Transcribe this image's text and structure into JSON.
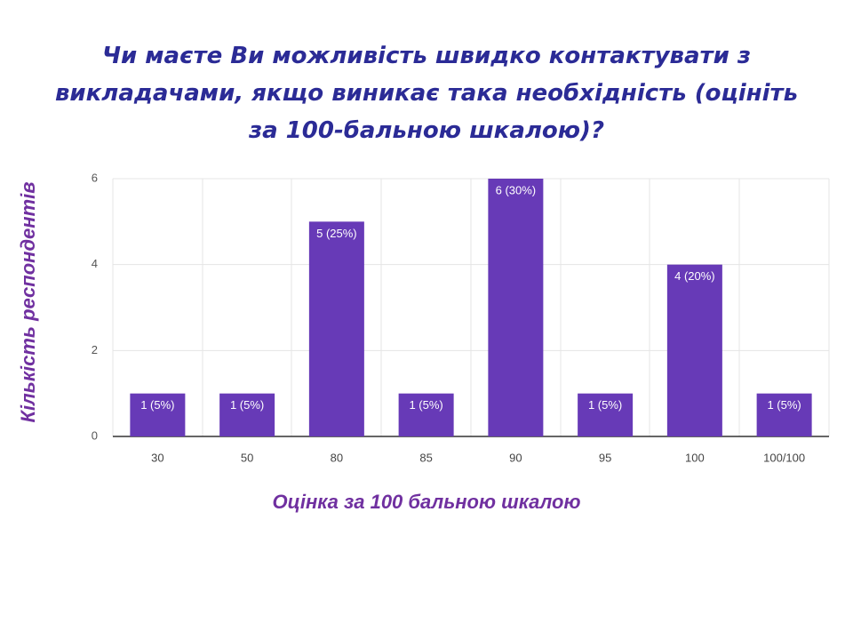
{
  "chart_data": {
    "type": "bar",
    "title": "Чи маєте Ви можливість швидко контактувати з викладачами, якщо виникає така необхідність (оцініть за 100-бальною шкалою)?",
    "x_label": "Оцінка за 100 бальною шкалою",
    "y_label": "Кількість респондентів",
    "categories": [
      "30",
      "50",
      "80",
      "85",
      "90",
      "95",
      "100",
      "100/100"
    ],
    "values": [
      1,
      1,
      5,
      1,
      6,
      1,
      4,
      1
    ],
    "value_labels": [
      "1 (5%)",
      "1 (5%)",
      "5 (25%)",
      "1 (5%)",
      "6 (30%)",
      "1 (5%)",
      "4 (20%)",
      "1 (5%)"
    ],
    "color": "#673ab7",
    "ylim": [
      0,
      6
    ],
    "yticks": [
      0,
      2,
      4,
      6
    ],
    "grid": true
  }
}
